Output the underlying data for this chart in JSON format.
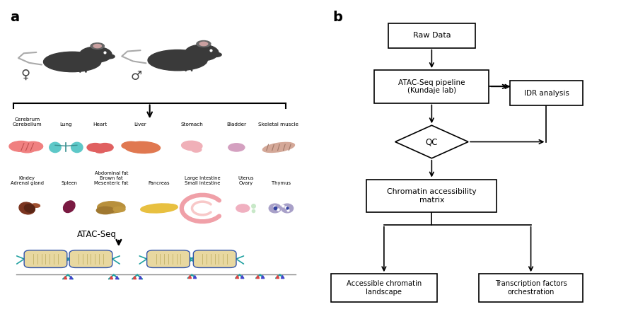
{
  "bg_color": "#ffffff",
  "panel_a_label": "a",
  "panel_b_label": "b",
  "label_fontsize": 14,
  "label_fontweight": "bold",
  "tissue_row1_labels": [
    "Cerebrum\nCerebellum",
    "Lung",
    "Heart",
    "Liver",
    "Stomach",
    "Bladder",
    "Skeletal muscle"
  ],
  "tissue_row2_labels": [
    "Kindey\nAdrenal gland",
    "Spleen",
    "Abdominal fat\nBrown fat\nMesenteric fat",
    "Pancreas",
    "Large intestine\nSmall intestine",
    "Uterus\nOvary",
    "Thymus"
  ],
  "atac_seq_label": "ATAC-Seq",
  "line_color": "#000000",
  "box_edge_color": "#000000",
  "text_color": "#000000",
  "female_symbol": "♀",
  "male_symbol": "♂",
  "mouse_color": "#3a3a3a",
  "mouse_ear_color": "#666666",
  "mouse_ear_inner": "#c9a0a0",
  "mouse_tail_color": "#aaaaaa"
}
